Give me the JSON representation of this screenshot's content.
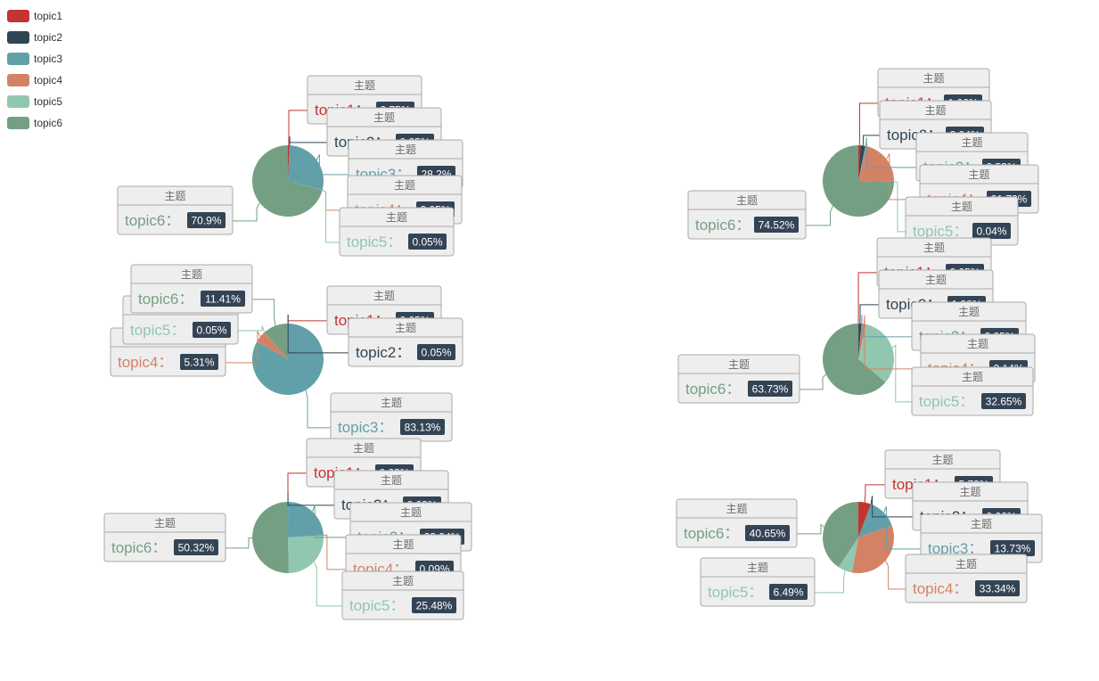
{
  "legend": {
    "items": [
      {
        "label": "topic1",
        "color": "#c23531"
      },
      {
        "label": "topic2",
        "color": "#2f4554"
      },
      {
        "label": "topic3",
        "color": "#61a0a8"
      },
      {
        "label": "topic4",
        "color": "#d48265"
      },
      {
        "label": "topic5",
        "color": "#91c7ae"
      },
      {
        "label": "topic6",
        "color": "#749f83"
      }
    ]
  },
  "label_title": "主题",
  "label_separator": "：",
  "chart_data": [
    {
      "type": "pie",
      "series": [
        {
          "name": "topic1",
          "value": 0.75,
          "label": "0.75%"
        },
        {
          "name": "topic2",
          "value": 0.05,
          "label": "0.05%"
        },
        {
          "name": "topic3",
          "value": 28.2,
          "label": "28.2%"
        },
        {
          "name": "topic4",
          "value": 0.05,
          "label": "0.05%"
        },
        {
          "name": "topic5",
          "value": 0.05,
          "label": "0.05%"
        },
        {
          "name": "topic6",
          "value": 70.9,
          "label": "70.9%"
        }
      ]
    },
    {
      "type": "pie",
      "series": [
        {
          "name": "topic1",
          "value": 0.05,
          "label": "0.05%"
        },
        {
          "name": "topic2",
          "value": 0.05,
          "label": "0.05%"
        },
        {
          "name": "topic3",
          "value": 83.13,
          "label": "83.13%"
        },
        {
          "name": "topic4",
          "value": 5.31,
          "label": "5.31%"
        },
        {
          "name": "topic5",
          "value": 0.05,
          "label": "0.05%"
        },
        {
          "name": "topic6",
          "value": 11.41,
          "label": "11.41%"
        }
      ]
    },
    {
      "type": "pie",
      "series": [
        {
          "name": "topic1",
          "value": 0.03,
          "label": "0.03%"
        },
        {
          "name": "topic2",
          "value": 0.03,
          "label": "0.03%"
        },
        {
          "name": "topic3",
          "value": 23.94,
          "label": "23.94%"
        },
        {
          "name": "topic4",
          "value": 0.09,
          "label": "0.09%"
        },
        {
          "name": "topic5",
          "value": 25.48,
          "label": "25.48%"
        },
        {
          "name": "topic6",
          "value": 50.32,
          "label": "50.32%"
        }
      ]
    },
    {
      "type": "pie",
      "series": [
        {
          "name": "topic1",
          "value": 1.06,
          "label": "1.06%"
        },
        {
          "name": "topic2",
          "value": 2.04,
          "label": "2.04%"
        },
        {
          "name": "topic3",
          "value": 0.53,
          "label": "0.53%"
        },
        {
          "name": "topic4",
          "value": 21.72,
          "label": "21.72%"
        },
        {
          "name": "topic5",
          "value": 0.04,
          "label": "0.04%"
        },
        {
          "name": "topic6",
          "value": 74.52,
          "label": "74.52%"
        }
      ]
    },
    {
      "type": "pie",
      "series": [
        {
          "name": "topic1",
          "value": 0.05,
          "label": "0.05%"
        },
        {
          "name": "topic2",
          "value": 1.38,
          "label": "1.38%"
        },
        {
          "name": "topic3",
          "value": 0.05,
          "label": "0.05%"
        },
        {
          "name": "topic4",
          "value": 2.14,
          "label": "2.14%"
        },
        {
          "name": "topic5",
          "value": 32.65,
          "label": "32.65%"
        },
        {
          "name": "topic6",
          "value": 63.73,
          "label": "63.73%"
        }
      ]
    },
    {
      "type": "pie",
      "series": [
        {
          "name": "topic1",
          "value": 5.73,
          "label": "5.73%"
        },
        {
          "name": "topic2",
          "value": 0.06,
          "label": "0.06%"
        },
        {
          "name": "topic3",
          "value": 13.73,
          "label": "13.73%"
        },
        {
          "name": "topic4",
          "value": 33.34,
          "label": "33.34%"
        },
        {
          "name": "topic5",
          "value": 6.49,
          "label": "6.49%"
        },
        {
          "name": "topic6",
          "value": 40.65,
          "label": "40.65%"
        }
      ]
    }
  ]
}
